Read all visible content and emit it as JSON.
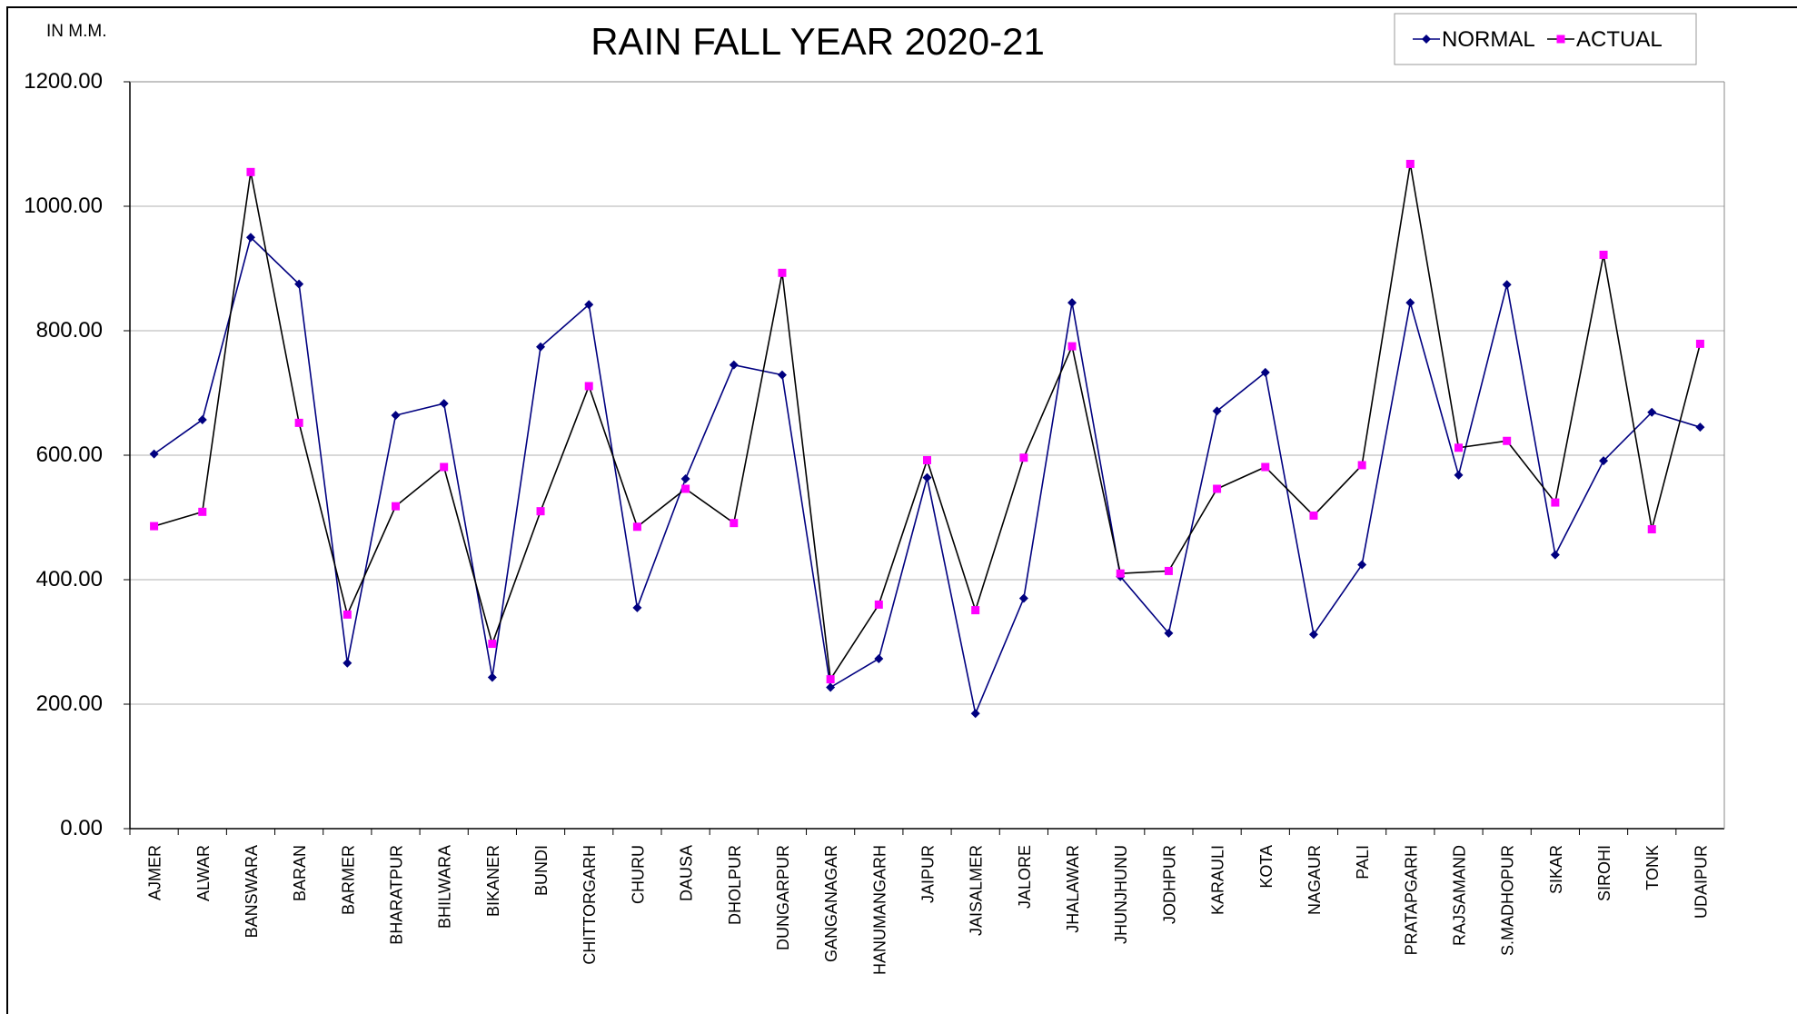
{
  "chart_data": {
    "type": "line",
    "title": "RAIN  FALL YEAR  2020-21",
    "y_label": "IN M.M.",
    "categories": [
      "AJMER",
      "ALWAR",
      "BANSWARA",
      "BARAN",
      "BARMER",
      "BHARATPUR",
      "BHILWARA",
      "BIKANER",
      "BUNDI",
      "CHITTORGARH",
      "CHURU",
      "DAUSA",
      "DHOLPUR",
      "DUNGARPUR",
      "GANGANAGAR",
      "HANUMANGARH",
      "JAIPUR",
      "JAISALMER",
      "JALORE",
      "JHALAWAR",
      "JHUNJHUNU",
      "JODHPUR",
      "KARAULI",
      "KOTA",
      "NAGAUR",
      "PALI",
      "PRATAPGARH",
      "RAJSAMAND",
      "S.MADHOPUR",
      "SIKAR",
      "SIROHI",
      "TONK",
      "UDAIPUR"
    ],
    "series": [
      {
        "name": "NORMAL",
        "color": "#000080",
        "line_color": "#000080",
        "marker": "diamond",
        "values": [
          602,
          657,
          950,
          875,
          266,
          664,
          683,
          243,
          774,
          842,
          355,
          562,
          745,
          729,
          227,
          273,
          564,
          185,
          370,
          845,
          405,
          314,
          671,
          733,
          312,
          424,
          845,
          568,
          874,
          440,
          591,
          669,
          645
        ]
      },
      {
        "name": "ACTUAL",
        "color": "#ff00ff",
        "line_color": "#000000",
        "marker": "square",
        "values": [
          486,
          509,
          1055,
          652,
          344,
          518,
          581,
          297,
          510,
          711,
          485,
          546,
          491,
          893,
          240,
          360,
          592,
          351,
          596,
          775,
          410,
          414,
          546,
          581,
          503,
          584,
          1068,
          612,
          623,
          524,
          922,
          481,
          779
        ]
      }
    ],
    "ylim": [
      0,
      1200
    ],
    "yticks": [
      {
        "value": 0,
        "label": "0.00"
      },
      {
        "value": 200,
        "label": "200.00"
      },
      {
        "value": 400,
        "label": "400.00"
      },
      {
        "value": 600,
        "label": "600.00"
      },
      {
        "value": 800,
        "label": "800.00"
      },
      {
        "value": 1000,
        "label": "1000.00"
      },
      {
        "value": 1200,
        "label": "1200.00"
      }
    ],
    "grid": true,
    "legend": "top-right"
  }
}
